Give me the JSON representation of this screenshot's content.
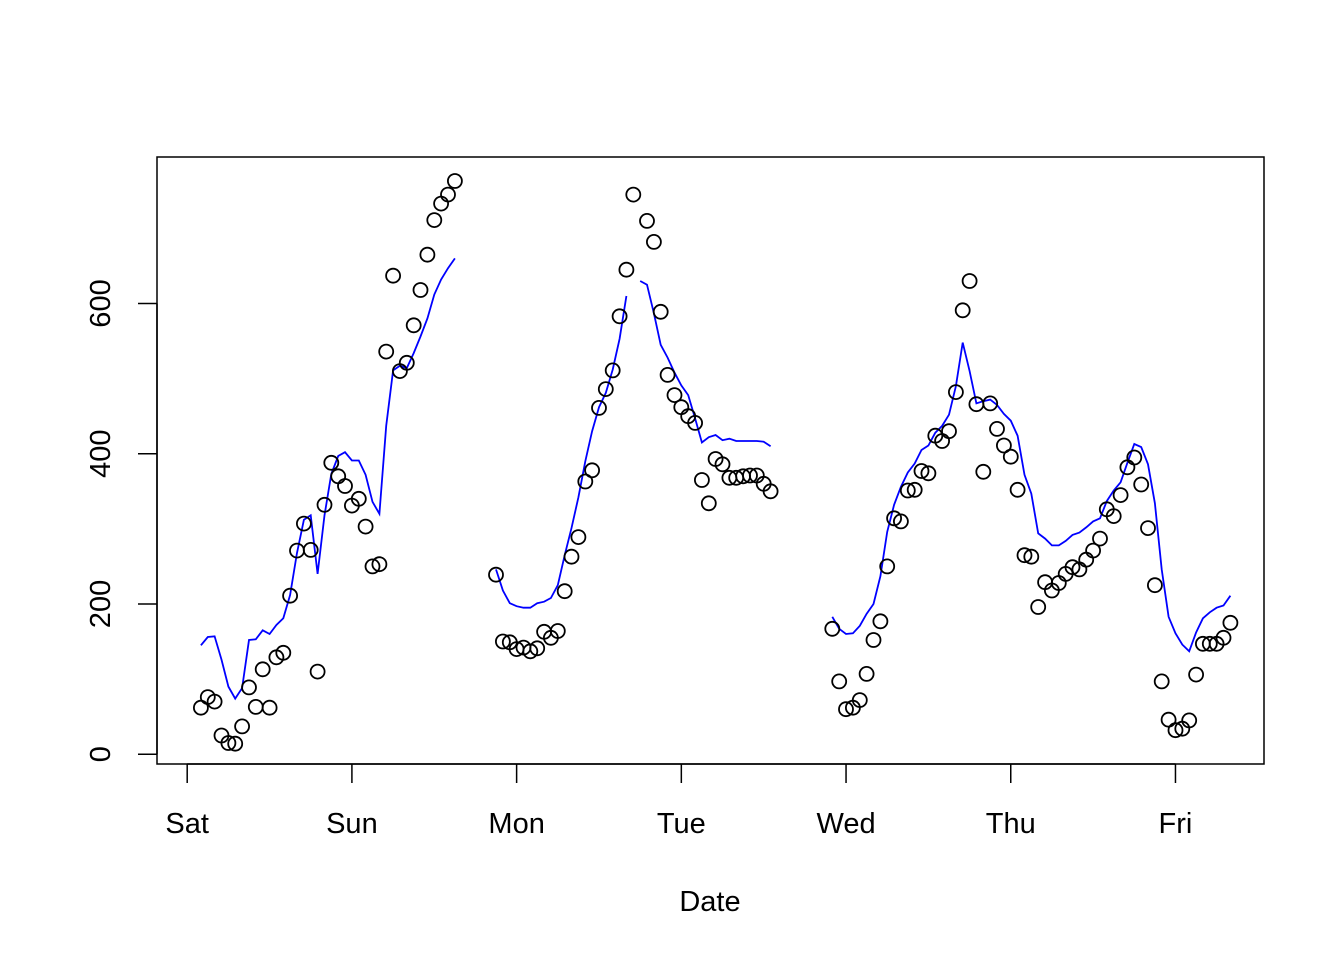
{
  "chart_data": {
    "type": "scatter",
    "title": "",
    "xlabel": "Date",
    "ylabel": "",
    "x_unit": "hours from Sat 00:00",
    "xlim": [
      -4.4,
      156.9
    ],
    "ylim": [
      -13,
      795
    ],
    "x_ticks": [
      {
        "label": "Sat",
        "value": 0
      },
      {
        "label": "Sun",
        "value": 24
      },
      {
        "label": "Mon",
        "value": 48
      },
      {
        "label": "Tue",
        "value": 72
      },
      {
        "label": "Wed",
        "value": 96
      },
      {
        "label": "Thu",
        "value": 120
      },
      {
        "label": "Fri",
        "value": 144
      }
    ],
    "y_ticks": [
      0,
      200,
      400,
      600
    ],
    "grid": false,
    "legend": "none",
    "colors": {
      "points": "#000000",
      "line": "#0000ff"
    },
    "series": [
      {
        "kind": "points",
        "segments": [
          [
            [
              2,
              62
            ],
            [
              3,
              76
            ],
            [
              4,
              70
            ],
            [
              5,
              25
            ],
            [
              6,
              15
            ],
            [
              7,
              14
            ],
            [
              8,
              37
            ],
            [
              9,
              89
            ],
            [
              10,
              63
            ],
            [
              11,
              113
            ],
            [
              12,
              62
            ],
            [
              13,
              129
            ],
            [
              14,
              135
            ],
            [
              15,
              211
            ],
            [
              16,
              271
            ],
            [
              17,
              307
            ],
            [
              18,
              272
            ],
            [
              19,
              110
            ],
            [
              20,
              332
            ],
            [
              21,
              388
            ],
            [
              22,
              370
            ],
            [
              23,
              357
            ],
            [
              24,
              331
            ],
            [
              25,
              340
            ],
            [
              26,
              303
            ],
            [
              27,
              250
            ],
            [
              28,
              253
            ],
            [
              29,
              536
            ],
            [
              30,
              637
            ],
            [
              31,
              510
            ],
            [
              32,
              521
            ],
            [
              33,
              571
            ],
            [
              34,
              618
            ],
            [
              35,
              665
            ],
            [
              36,
              711
            ],
            [
              37,
              733
            ],
            [
              38,
              745
            ],
            [
              39,
              763
            ]
          ],
          [
            [
              45,
              239
            ],
            [
              46,
              150
            ],
            [
              47,
              149
            ],
            [
              48,
              140
            ],
            [
              49,
              142
            ],
            [
              50,
              137
            ],
            [
              51,
              141
            ],
            [
              52,
              163
            ],
            [
              53,
              155
            ],
            [
              54,
              164
            ],
            [
              55,
              217
            ],
            [
              56,
              263
            ],
            [
              57,
              289
            ],
            [
              58,
              363
            ],
            [
              59,
              378
            ],
            [
              60,
              461
            ],
            [
              61,
              486
            ],
            [
              62,
              511
            ],
            [
              63,
              583
            ],
            [
              64,
              645
            ],
            [
              65,
              745
            ],
            [
              67,
              710
            ],
            [
              68,
              682
            ],
            [
              69,
              589
            ],
            [
              70,
              505
            ],
            [
              71,
              478
            ],
            [
              72,
              462
            ],
            [
              73,
              450
            ],
            [
              74,
              441
            ],
            [
              75,
              365
            ],
            [
              76,
              334
            ],
            [
              77,
              393
            ],
            [
              78,
              386
            ],
            [
              79,
              368
            ],
            [
              80,
              368
            ],
            [
              81,
              370
            ],
            [
              82,
              371
            ],
            [
              83,
              371
            ],
            [
              84,
              360
            ],
            [
              85,
              350
            ]
          ],
          [
            [
              94,
              167
            ],
            [
              95,
              97
            ],
            [
              96,
              60
            ],
            [
              97,
              62
            ],
            [
              98,
              72
            ],
            [
              99,
              107
            ],
            [
              100,
              152
            ],
            [
              101,
              177
            ],
            [
              102,
              250
            ],
            [
              103,
              314
            ],
            [
              104,
              310
            ],
            [
              105,
              351
            ],
            [
              106,
              352
            ],
            [
              107,
              377
            ],
            [
              108,
              374
            ],
            [
              109,
              424
            ],
            [
              110,
              417
            ],
            [
              111,
              430
            ],
            [
              112,
              482
            ],
            [
              113,
              591
            ],
            [
              114,
              630
            ],
            [
              115,
              466
            ],
            [
              116,
              376
            ],
            [
              117,
              467
            ],
            [
              118,
              433
            ],
            [
              119,
              411
            ],
            [
              120,
              396
            ],
            [
              121,
              352
            ],
            [
              122,
              265
            ],
            [
              123,
              263
            ],
            [
              124,
              196
            ],
            [
              125,
              229
            ],
            [
              126,
              218
            ],
            [
              127,
              228
            ],
            [
              128,
              240
            ],
            [
              129,
              249
            ],
            [
              130,
              246
            ],
            [
              131,
              259
            ],
            [
              132,
              271
            ],
            [
              133,
              287
            ],
            [
              134,
              326
            ],
            [
              135,
              317
            ],
            [
              136,
              345
            ],
            [
              137,
              382
            ],
            [
              138,
              395
            ],
            [
              139,
              359
            ],
            [
              140,
              301
            ],
            [
              141,
              225
            ],
            [
              142,
              97
            ],
            [
              143,
              46
            ],
            [
              144,
              32
            ],
            [
              145,
              34
            ],
            [
              146,
              45
            ],
            [
              147,
              106
            ],
            [
              148,
              147
            ],
            [
              149,
              147
            ],
            [
              150,
              147
            ],
            [
              151,
              155
            ],
            [
              152,
              175
            ]
          ]
        ]
      },
      {
        "kind": "line",
        "segments": [
          [
            [
              2,
              145
            ],
            [
              3,
              156
            ],
            [
              4,
              157
            ],
            [
              5,
              126
            ],
            [
              6,
              90
            ],
            [
              7,
              74
            ],
            [
              8,
              88
            ],
            [
              9,
              152
            ],
            [
              10,
              153
            ],
            [
              11,
              165
            ],
            [
              12,
              160
            ],
            [
              13,
              172
            ],
            [
              14,
              181
            ],
            [
              15,
              212
            ],
            [
              16,
              268
            ],
            [
              17,
              312
            ],
            [
              18,
              318
            ],
            [
              19,
              240
            ],
            [
              20,
              318
            ],
            [
              21,
              373
            ],
            [
              22,
              397
            ],
            [
              23,
              402
            ],
            [
              24,
              391
            ],
            [
              25,
              391
            ],
            [
              26,
              372
            ],
            [
              27,
              336
            ],
            [
              28,
              320
            ],
            [
              29,
              437
            ],
            [
              30,
              511
            ],
            [
              31,
              517
            ],
            [
              32,
              514
            ],
            [
              33,
              534
            ],
            [
              34,
              556
            ],
            [
              35,
              580
            ],
            [
              36,
              612
            ],
            [
              37,
              632
            ],
            [
              38,
              647
            ],
            [
              39,
              660
            ]
          ],
          [
            [
              45,
              246
            ],
            [
              46,
              218
            ],
            [
              47,
              201
            ],
            [
              48,
              197
            ],
            [
              49,
              195
            ],
            [
              50,
              195
            ],
            [
              51,
              201
            ],
            [
              52,
              203
            ],
            [
              53,
              208
            ],
            [
              54,
              225
            ],
            [
              55,
              265
            ],
            [
              56,
              301
            ],
            [
              57,
              342
            ],
            [
              58,
              390
            ],
            [
              59,
              430
            ],
            [
              60,
              462
            ],
            [
              61,
              481
            ],
            [
              62,
              512
            ],
            [
              63,
              553
            ],
            [
              64,
              610
            ]
          ],
          [
            [
              66,
              630
            ],
            [
              67,
              625
            ],
            [
              68,
              587
            ],
            [
              69,
              545
            ],
            [
              70,
              528
            ],
            [
              71,
              508
            ],
            [
              72,
              491
            ],
            [
              73,
              478
            ],
            [
              74,
              447
            ],
            [
              75,
              415
            ],
            [
              76,
              422
            ],
            [
              77,
              425
            ],
            [
              78,
              418
            ],
            [
              79,
              420
            ],
            [
              80,
              417
            ],
            [
              81,
              417
            ],
            [
              82,
              417
            ],
            [
              83,
              417
            ],
            [
              84,
              416
            ],
            [
              85,
              410
            ]
          ],
          [
            [
              94,
              183
            ],
            [
              95,
              167
            ],
            [
              96,
              160
            ],
            [
              97,
              161
            ],
            [
              98,
              171
            ],
            [
              99,
              187
            ],
            [
              100,
              200
            ],
            [
              101,
              237
            ],
            [
              102,
              296
            ],
            [
              103,
              332
            ],
            [
              104,
              356
            ],
            [
              105,
              375
            ],
            [
              106,
              387
            ],
            [
              107,
              405
            ],
            [
              108,
              411
            ],
            [
              109,
              428
            ],
            [
              110,
              437
            ],
            [
              111,
              452
            ],
            [
              112,
              490
            ],
            [
              113,
              548
            ],
            [
              114,
              510
            ],
            [
              115,
              467
            ],
            [
              116,
              470
            ],
            [
              117,
              472
            ],
            [
              118,
              465
            ],
            [
              119,
              453
            ],
            [
              120,
              444
            ],
            [
              121,
              424
            ],
            [
              122,
              372
            ],
            [
              123,
              347
            ],
            [
              124,
              294
            ],
            [
              125,
              287
            ],
            [
              126,
              278
            ],
            [
              127,
              278
            ],
            [
              128,
              284
            ],
            [
              129,
              292
            ],
            [
              130,
              295
            ],
            [
              131,
              302
            ],
            [
              132,
              310
            ],
            [
              133,
              314
            ],
            [
              134,
              337
            ],
            [
              135,
              351
            ],
            [
              136,
              362
            ],
            [
              137,
              388
            ],
            [
              138,
              413
            ],
            [
              139,
              409
            ],
            [
              140,
              386
            ],
            [
              141,
              334
            ],
            [
              142,
              246
            ],
            [
              143,
              183
            ],
            [
              144,
              161
            ],
            [
              145,
              146
            ],
            [
              146,
              137
            ],
            [
              147,
              162
            ],
            [
              148,
              181
            ],
            [
              149,
              189
            ],
            [
              150,
              195
            ],
            [
              151,
              198
            ],
            [
              152,
              211
            ]
          ]
        ]
      }
    ]
  }
}
